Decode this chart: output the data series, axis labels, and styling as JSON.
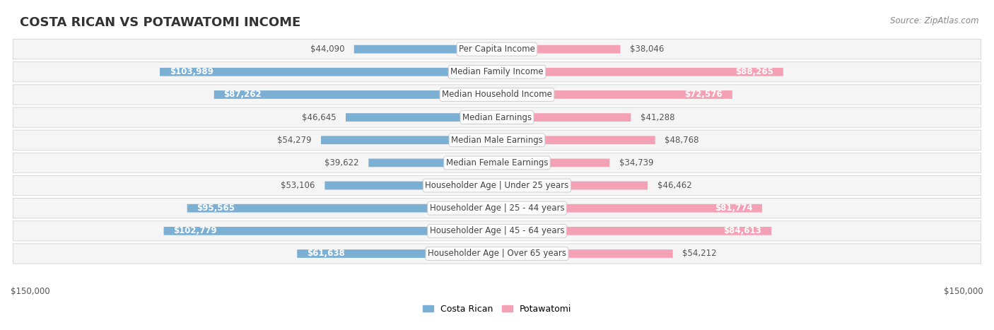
{
  "title": "COSTA RICAN VS POTAWATOMI INCOME",
  "source": "Source: ZipAtlas.com",
  "categories": [
    "Per Capita Income",
    "Median Family Income",
    "Median Household Income",
    "Median Earnings",
    "Median Male Earnings",
    "Median Female Earnings",
    "Householder Age | Under 25 years",
    "Householder Age | 25 - 44 years",
    "Householder Age | 45 - 64 years",
    "Householder Age | Over 65 years"
  ],
  "costa_rican": [
    44090,
    103989,
    87262,
    46645,
    54279,
    39622,
    53106,
    95565,
    102779,
    61638
  ],
  "potawatomi": [
    38046,
    88265,
    72576,
    41288,
    48768,
    34739,
    46462,
    81774,
    84613,
    54212
  ],
  "max_val": 150000,
  "blue_color": "#7bafd4",
  "pink_color": "#f4a0b5",
  "row_bg_color": "#f5f5f5",
  "label_fontsize": 8.5,
  "title_fontsize": 13,
  "source_fontsize": 8.5,
  "value_fontsize": 8.5
}
